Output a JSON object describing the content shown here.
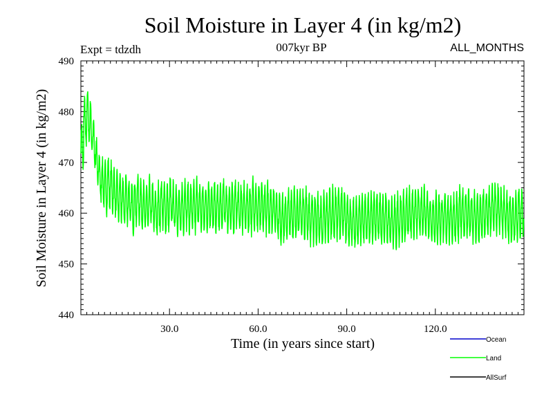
{
  "chart_data": {
    "type": "line",
    "title": "Soil Moisture in Layer 4 (in kg/m2)",
    "subtitle_left": "Expt = tdzdh",
    "subtitle_center": "007kyr BP",
    "subtitle_right": "ALL_MONTHS",
    "xlabel": "Time (in years since start)",
    "ylabel": "Soil Moisture in Layer 4 (in kg/m2)",
    "xlim": [
      0,
      150
    ],
    "ylim": [
      440,
      490
    ],
    "x_ticks": [
      30,
      60,
      90,
      120
    ],
    "x_tick_labels": [
      "30.0",
      "60.0",
      "90.0",
      "120.0"
    ],
    "y_ticks": [
      440,
      450,
      460,
      470,
      480,
      490
    ],
    "y_tick_labels": [
      "440",
      "450",
      "460",
      "470",
      "480",
      "490"
    ],
    "legend": [
      {
        "name": "Ocean",
        "color": "#0000cc"
      },
      {
        "name": "Land",
        "color": "#00ff00"
      },
      {
        "name": "AllSurf",
        "color": "#000000"
      }
    ],
    "series": [
      {
        "name": "Land",
        "color": "#00ff00",
        "sampling": "monthly",
        "annual_mean": [
          473,
          478,
          479,
          477,
          474,
          470,
          467,
          466,
          465,
          466,
          465,
          464,
          463,
          463,
          462,
          463,
          462,
          461,
          462,
          463,
          462,
          461,
          461,
          462,
          461,
          460,
          461,
          462,
          461,
          461,
          462,
          461,
          461,
          460,
          461,
          462,
          461,
          461,
          461,
          462,
          461,
          461,
          461,
          462,
          461,
          461,
          461,
          461,
          462,
          461,
          461,
          461,
          462,
          461,
          461,
          461,
          461,
          461,
          462,
          461,
          461,
          461,
          461,
          461,
          461,
          461,
          460,
          459,
          459,
          459,
          460,
          460,
          460,
          460,
          460,
          460,
          460,
          459,
          459,
          459,
          459,
          458,
          459,
          459,
          460,
          460,
          460,
          460,
          460,
          459,
          459,
          458,
          458,
          458,
          459,
          459,
          459,
          459,
          459,
          459,
          459,
          459,
          459,
          459,
          458,
          458,
          458,
          459,
          459,
          459,
          460,
          460,
          460,
          460,
          460,
          460,
          460,
          460,
          459,
          459,
          459,
          459,
          459,
          459,
          459,
          459,
          459,
          459,
          460,
          460,
          460,
          460,
          459,
          459,
          459,
          459,
          460,
          460,
          460,
          461,
          461,
          461,
          460,
          460,
          459,
          459,
          459,
          459,
          460,
          460
        ],
        "seasonal_amplitude": 4.5
      }
    ]
  }
}
